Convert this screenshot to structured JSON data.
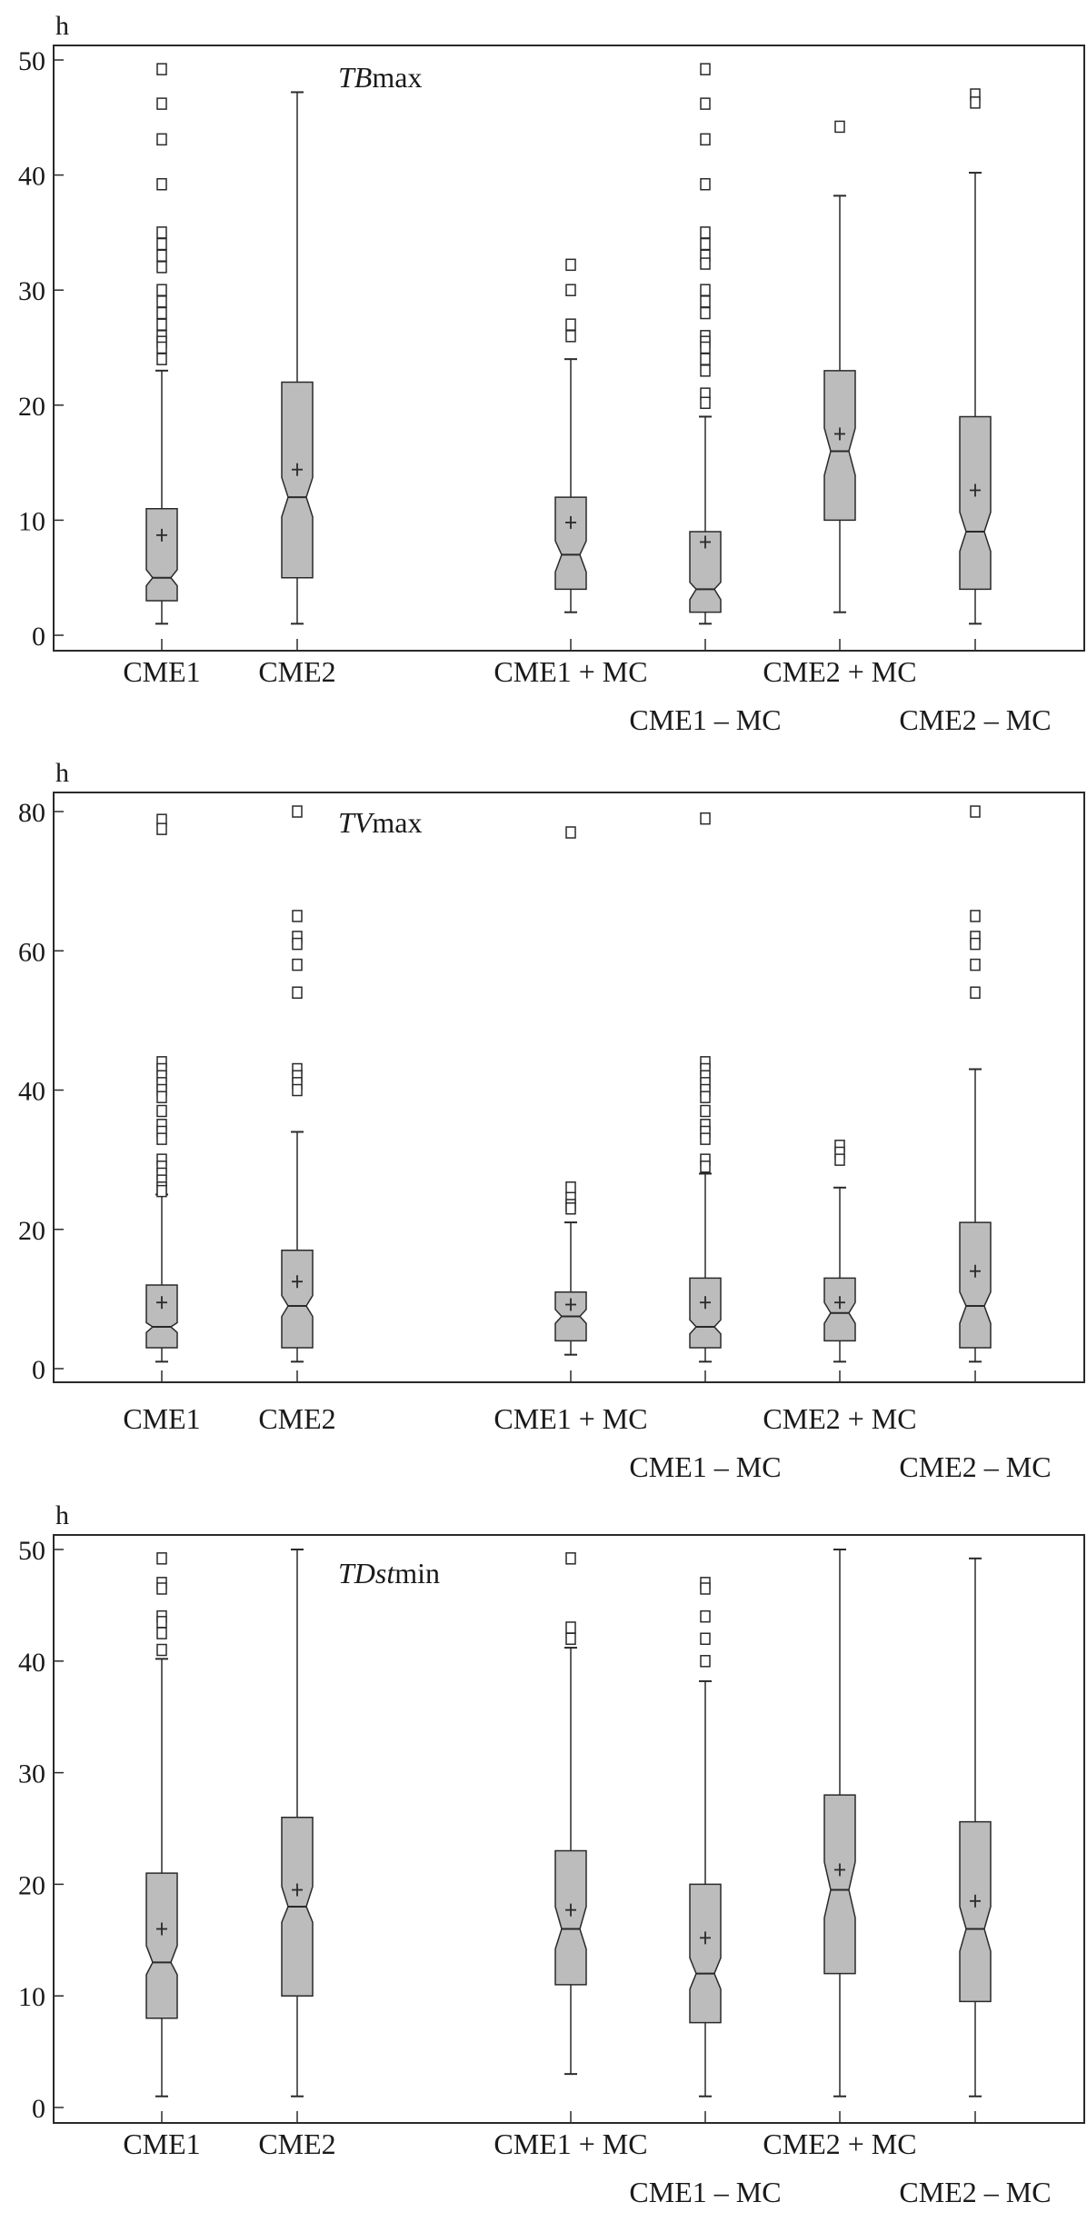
{
  "chart_data": [
    {
      "type": "boxplot",
      "title_parts": [
        {
          "text": "TB",
          "style": "italic"
        },
        {
          "text": "max",
          "style": "normal"
        }
      ],
      "ylabel": "h",
      "ylim": [
        0,
        50
      ],
      "yticks": [
        0,
        10,
        20,
        30,
        40,
        50
      ],
      "categories": [
        "CME1",
        "CME2",
        "CME1 + MC",
        "CME1 – MC",
        "CME2 + MC",
        "CME2 – MC"
      ],
      "boxes": [
        {
          "whisker_low": 1,
          "q1": 3,
          "median": 5,
          "q3": 11,
          "whisker_high": 23,
          "mean": 8.7,
          "notch": [
            4.3,
            5.7
          ],
          "outliers": [
            49.2,
            46.2,
            43.1,
            39.2,
            35,
            34,
            33,
            32,
            30,
            29,
            28,
            27,
            26,
            25.5,
            25,
            24
          ]
        },
        {
          "whisker_low": 1,
          "q1": 5,
          "median": 12,
          "q3": 22,
          "whisker_high": 47.2,
          "mean": 14.4,
          "notch": [
            10.3,
            13.7
          ],
          "outliers": []
        },
        {
          "whisker_low": 2,
          "q1": 4,
          "median": 7,
          "q3": 12,
          "whisker_high": 24,
          "mean": 9.8,
          "notch": [
            5.5,
            8.2
          ],
          "outliers": [
            32.2,
            30,
            27,
            26
          ]
        },
        {
          "whisker_low": 1,
          "q1": 2,
          "median": 4,
          "q3": 9,
          "whisker_high": 19,
          "mean": 8.1,
          "notch": [
            3.1,
            4.6
          ],
          "outliers": [
            49.2,
            46.2,
            43.1,
            39.2,
            35,
            34,
            33,
            32.3,
            30,
            29,
            28,
            26,
            25.5,
            25,
            24,
            23,
            21,
            20.2
          ]
        },
        {
          "whisker_low": 2,
          "q1": 10,
          "median": 16,
          "q3": 23,
          "whisker_high": 38.2,
          "mean": 17.5,
          "notch": [
            13.9,
            18
          ],
          "outliers": [
            44.2
          ]
        },
        {
          "whisker_low": 1,
          "q1": 4,
          "median": 9,
          "q3": 19,
          "whisker_high": 40.2,
          "mean": 12.6,
          "notch": [
            7.3,
            10.7
          ],
          "outliers": [
            47,
            46.3
          ]
        }
      ]
    },
    {
      "type": "boxplot",
      "title_parts": [
        {
          "text": "TV",
          "style": "italic"
        },
        {
          "text": "max",
          "style": "normal"
        }
      ],
      "ylabel": "h",
      "ylim": [
        0,
        80
      ],
      "yticks": [
        0,
        20,
        40,
        60,
        80
      ],
      "categories": [
        "CME1",
        "CME2",
        "CME1 + MC",
        "CME1 – MC",
        "CME2 + MC",
        "CME2 – MC"
      ],
      "boxes": [
        {
          "whisker_low": 1,
          "q1": 3,
          "median": 6,
          "q3": 12,
          "whisker_high": 25,
          "mean": 9.5,
          "notch": [
            5.2,
            6.6
          ],
          "outliers": [
            78.8,
            77.5,
            44,
            43,
            42,
            41,
            40,
            39,
            37,
            35,
            34,
            33,
            30,
            29,
            28,
            27,
            26,
            25.5
          ]
        },
        {
          "whisker_low": 1,
          "q1": 3,
          "median": 9,
          "q3": 17,
          "whisker_high": 34,
          "mean": 12.5,
          "notch": [
            7.5,
            10.5
          ],
          "outliers": [
            80,
            65,
            62,
            61,
            58,
            54,
            43,
            42,
            41,
            40
          ]
        },
        {
          "whisker_low": 2,
          "q1": 4,
          "median": 7.5,
          "q3": 11,
          "whisker_high": 21,
          "mean": 9.2,
          "notch": [
            6.5,
            8.5
          ],
          "outliers": [
            77,
            26,
            24.5,
            23.5,
            23
          ]
        },
        {
          "whisker_low": 1,
          "q1": 3,
          "median": 6,
          "q3": 13,
          "whisker_high": 28,
          "mean": 9.5,
          "notch": [
            5,
            7
          ],
          "outliers": [
            79,
            44,
            43,
            42,
            41,
            40,
            39,
            37,
            35,
            34,
            33,
            30,
            29
          ]
        },
        {
          "whisker_low": 1,
          "q1": 4,
          "median": 8,
          "q3": 13,
          "whisker_high": 26,
          "mean": 9.5,
          "notch": [
            6.5,
            9.5
          ],
          "outliers": [
            32,
            31,
            30
          ]
        },
        {
          "whisker_low": 1,
          "q1": 3,
          "median": 9,
          "q3": 21,
          "whisker_high": 43,
          "mean": 14,
          "notch": [
            6.5,
            11
          ],
          "outliers": [
            80,
            65,
            62,
            61,
            58,
            54
          ]
        }
      ]
    },
    {
      "type": "boxplot",
      "title_parts": [
        {
          "text": "TDst",
          "style": "italic"
        },
        {
          "text": "min",
          "style": "normal"
        }
      ],
      "ylabel": "h",
      "ylim": [
        0,
        50
      ],
      "yticks": [
        0,
        10,
        20,
        30,
        40,
        50
      ],
      "categories": [
        "CME1",
        "CME2",
        "CME1 + MC",
        "CME1 – MC",
        "CME2 + MC",
        "CME2 – MC"
      ],
      "boxes": [
        {
          "whisker_low": 1,
          "q1": 8,
          "median": 13,
          "q3": 21,
          "whisker_high": 40.2,
          "mean": 16,
          "notch": [
            11.9,
            14.5
          ],
          "outliers": [
            49.2,
            47,
            46.5,
            44,
            43.5,
            42.5,
            41
          ]
        },
        {
          "whisker_low": 1,
          "q1": 10,
          "median": 18,
          "q3": 26,
          "whisker_high": 50,
          "mean": 19.5,
          "notch": [
            16.6,
            19.8
          ],
          "outliers": []
        },
        {
          "whisker_low": 3,
          "q1": 11,
          "median": 16,
          "q3": 23,
          "whisker_high": 41.2,
          "mean": 17.7,
          "notch": [
            14.2,
            18
          ],
          "outliers": [
            49.2,
            43,
            42
          ]
        },
        {
          "whisker_low": 1,
          "q1": 7.6,
          "median": 12,
          "q3": 20,
          "whisker_high": 38.2,
          "mean": 15.2,
          "notch": [
            10.6,
            13.4
          ],
          "outliers": [
            47,
            46.5,
            44,
            42,
            40
          ]
        },
        {
          "whisker_low": 1,
          "q1": 12,
          "median": 19.5,
          "q3": 28,
          "whisker_high": 50,
          "mean": 21.3,
          "notch": [
            17,
            22
          ],
          "outliers": []
        },
        {
          "whisker_low": 1,
          "q1": 9.5,
          "median": 16,
          "q3": 25.6,
          "whisker_high": 49.2,
          "mean": 18.5,
          "notch": [
            14,
            18
          ],
          "outliers": []
        }
      ]
    }
  ],
  "colors": {
    "box_fill": "#bcbcbc",
    "stroke": "#2a2a2a",
    "outlier_fill": "#ffffff"
  }
}
